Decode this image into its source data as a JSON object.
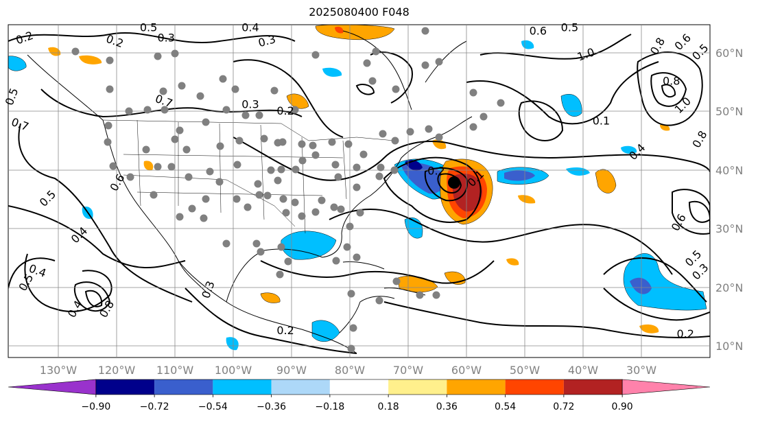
{
  "title": "2025080400 F048",
  "map": {
    "lon_labels": [
      "130°W",
      "120°W",
      "110°W",
      "100°W",
      "90°W",
      "80°W",
      "70°W",
      "60°W",
      "50°W",
      "40°W",
      "30°W"
    ],
    "lat_labels": [
      "60°N",
      "50°N",
      "40°N",
      "30°N",
      "20°N",
      "10°N"
    ],
    "label_color": "#808080"
  },
  "contour_labels": [
    {
      "text": "0.2",
      "rot": -20,
      "lx": 0.025,
      "ly": 0.05
    },
    {
      "text": "0.2",
      "rot": 20,
      "lx": 0.15,
      "ly": 0.06
    },
    {
      "text": "0.5",
      "rot": 0,
      "lx": 0.2,
      "ly": 0.02
    },
    {
      "text": "0.3",
      "rot": 0,
      "lx": 0.225,
      "ly": 0.05
    },
    {
      "text": "0.4",
      "rot": 0,
      "lx": 0.345,
      "ly": 0.02
    },
    {
      "text": "0.3",
      "rot": -15,
      "lx": 0.37,
      "ly": 0.06
    },
    {
      "text": "0.6",
      "rot": 0,
      "lx": 0.755,
      "ly": 0.03
    },
    {
      "text": "0.5",
      "rot": 0,
      "lx": 0.8,
      "ly": 0.02
    },
    {
      "text": "1.0",
      "rot": -20,
      "lx": 0.825,
      "ly": 0.1
    },
    {
      "text": "0.8",
      "rot": -60,
      "lx": 0.93,
      "ly": 0.07
    },
    {
      "text": "0.6",
      "rot": -45,
      "lx": 0.965,
      "ly": 0.06
    },
    {
      "text": "0.5",
      "rot": -45,
      "lx": 0.99,
      "ly": 0.09
    },
    {
      "text": "0.8",
      "rot": 0,
      "lx": 0.945,
      "ly": 0.18
    },
    {
      "text": "1.0",
      "rot": -45,
      "lx": 0.965,
      "ly": 0.25
    },
    {
      "text": "0.5",
      "rot": -70,
      "lx": 0.01,
      "ly": 0.22
    },
    {
      "text": "0.7",
      "rot": 20,
      "lx": 0.015,
      "ly": 0.31
    },
    {
      "text": "0.7",
      "rot": 20,
      "lx": 0.22,
      "ly": 0.24
    },
    {
      "text": "0.3",
      "rot": 0,
      "lx": 0.345,
      "ly": 0.25
    },
    {
      "text": "0.2",
      "rot": 0,
      "lx": 0.395,
      "ly": 0.27
    },
    {
      "text": "0.1",
      "rot": 0,
      "lx": 0.845,
      "ly": 0.3
    },
    {
      "text": "0.4",
      "rot": -45,
      "lx": 0.9,
      "ly": 0.39
    },
    {
      "text": "0.8",
      "rot": -60,
      "lx": 0.99,
      "ly": 0.35
    },
    {
      "text": "0.6",
      "rot": -60,
      "lx": 0.16,
      "ly": 0.48
    },
    {
      "text": "0.5",
      "rot": -45,
      "lx": 0.06,
      "ly": 0.53
    },
    {
      "text": "0.4",
      "rot": -45,
      "lx": 0.105,
      "ly": 0.64
    },
    {
      "text": "0.2",
      "rot": 0,
      "lx": 0.61,
      "ly": 0.45
    },
    {
      "text": "0.1",
      "rot": -45,
      "lx": 0.67,
      "ly": 0.47
    },
    {
      "text": "0.6",
      "rot": -60,
      "lx": 0.96,
      "ly": 0.6
    },
    {
      "text": "0.4",
      "rot": 20,
      "lx": 0.04,
      "ly": 0.75
    },
    {
      "text": "0.5",
      "rot": -60,
      "lx": 0.03,
      "ly": 0.78
    },
    {
      "text": "0.3",
      "rot": -70,
      "lx": 0.29,
      "ly": 0.8
    },
    {
      "text": "0.5",
      "rot": -45,
      "lx": 0.98,
      "ly": 0.71
    },
    {
      "text": "0.3",
      "rot": -45,
      "lx": 0.99,
      "ly": 0.75
    },
    {
      "text": "0.4",
      "rot": -60,
      "lx": 0.1,
      "ly": 0.86
    },
    {
      "text": "0.8",
      "rot": -60,
      "lx": 0.145,
      "ly": 0.86
    },
    {
      "text": "0.2",
      "rot": 0,
      "lx": 0.395,
      "ly": 0.93
    },
    {
      "text": "0.2",
      "rot": 0,
      "lx": 0.965,
      "ly": 0.94
    }
  ],
  "colorbar": {
    "ticks": [
      "−0.90",
      "−0.72",
      "−0.54",
      "−0.36",
      "−0.18",
      "0.18",
      "0.36",
      "0.54",
      "0.72",
      "0.90"
    ],
    "colors": [
      "#9932cc",
      "#00008b",
      "#3a5fcd",
      "#00bfff",
      "#add8f8",
      "#ffffff",
      "#fff08c",
      "#ffa500",
      "#ff4500",
      "#b22222",
      "#ff82ab"
    ]
  },
  "dot_color": "#808080",
  "marker_color": "#000000"
}
